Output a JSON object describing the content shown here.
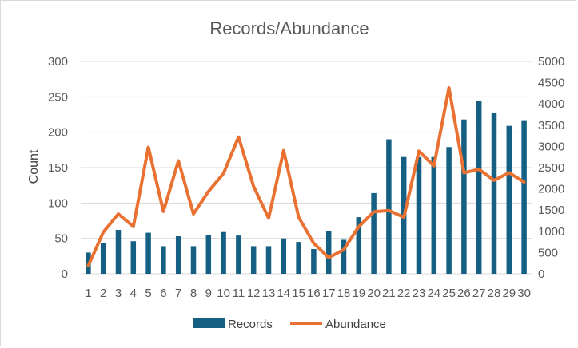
{
  "chart_data": {
    "type": "bar",
    "title": "Records/Abundance",
    "xlabel": "",
    "ylabel": "Count",
    "y2label": "",
    "categories": [
      "1",
      "2",
      "3",
      "4",
      "5",
      "6",
      "7",
      "8",
      "9",
      "10",
      "11",
      "12",
      "13",
      "14",
      "15",
      "16",
      "17",
      "18",
      "19",
      "20",
      "21",
      "22",
      "23",
      "24",
      "25",
      "26",
      "27",
      "28",
      "29",
      "30"
    ],
    "ylim": [
      0,
      300
    ],
    "y2lim": [
      0,
      5000
    ],
    "yticks": [
      0,
      50,
      100,
      150,
      200,
      250,
      300
    ],
    "y2ticks": [
      0,
      500,
      1000,
      1500,
      2000,
      2500,
      3000,
      3500,
      4000,
      4500,
      5000
    ],
    "grid": true,
    "legend_position": "bottom",
    "series": [
      {
        "name": "Records",
        "type": "bar",
        "axis": "left",
        "color": "#156082",
        "values": [
          30,
          43,
          62,
          46,
          58,
          39,
          53,
          39,
          55,
          59,
          54,
          39,
          39,
          50,
          45,
          35,
          60,
          48,
          80,
          114,
          190,
          165,
          165,
          165,
          179,
          218,
          244,
          227,
          209,
          217
        ]
      },
      {
        "name": "Abundance",
        "type": "line",
        "axis": "right",
        "color": "#E97132",
        "values": [
          190,
          980,
          1410,
          1110,
          2980,
          1470,
          2660,
          1410,
          1940,
          2360,
          3220,
          2060,
          1310,
          2900,
          1330,
          720,
          380,
          570,
          1110,
          1460,
          1490,
          1330,
          2890,
          2540,
          4380,
          2380,
          2460,
          2200,
          2380,
          2160
        ]
      }
    ]
  }
}
